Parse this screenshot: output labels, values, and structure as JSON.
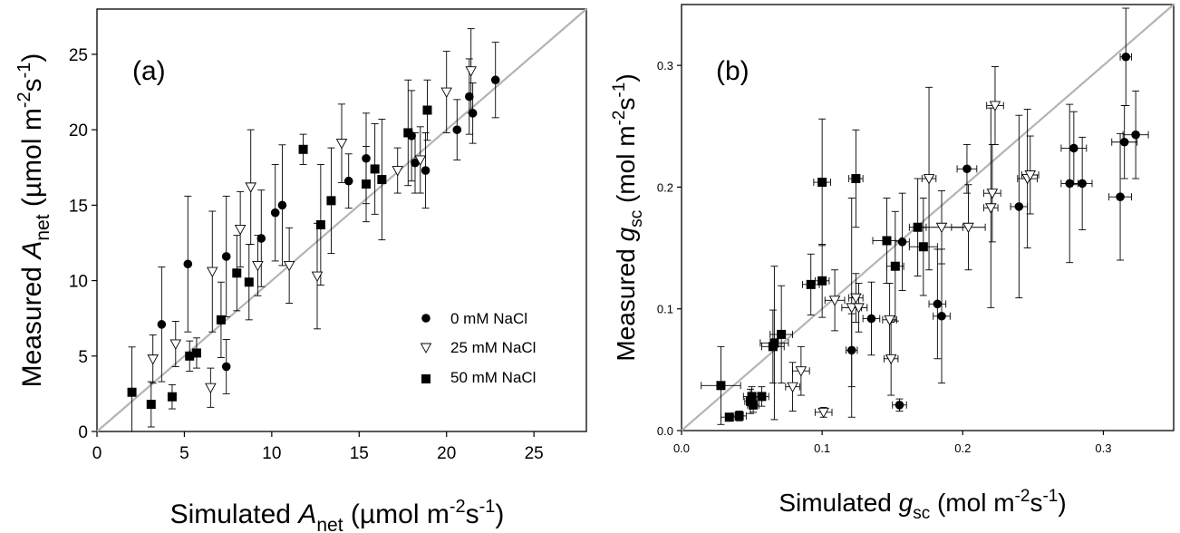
{
  "panels": [
    {
      "id": "a",
      "tag": "(a)",
      "x_axis": {
        "pre": "Simulated ",
        "var": "A",
        "sub": "net",
        "post_open": " (µmol m",
        "sup1": "-2",
        "mid": "s",
        "sup2": "-1",
        "close": ")"
      },
      "y_axis": {
        "pre": "Measured ",
        "var": "A",
        "sub": "net",
        "post_open": " (µmol m",
        "sup1": "-2",
        "mid": "s",
        "sup2": "-1",
        "close": ")"
      },
      "x_ticks": [
        "0",
        "5",
        "10",
        "15",
        "20",
        "25"
      ],
      "y_ticks": [
        "0",
        "5",
        "10",
        "15",
        "20",
        "25"
      ]
    },
    {
      "id": "b",
      "tag": "(b)",
      "x_axis": {
        "pre": "Simulated ",
        "var": "g",
        "sub": "sc",
        "post_open": " (mol m",
        "sup1": "-2",
        "mid": "s",
        "sup2": "-1",
        "close": ")"
      },
      "y_axis": {
        "pre": "Measured ",
        "var": "g",
        "sub": "sc",
        "post_open": " (mol m",
        "sup1": "-2",
        "mid": "s",
        "sup2": "-1",
        "close": ")"
      },
      "x_ticks": [
        "0.0",
        "0.1",
        "0.2",
        "0.3"
      ],
      "y_ticks": [
        "0.0",
        "0.1",
        "0.2",
        "0.3"
      ]
    }
  ],
  "legend": {
    "placement": "lower-right of panel (a)",
    "entries": [
      "0 mM NaCl",
      "25 mM NaCl",
      "50 mM NaCl"
    ]
  },
  "chart_data": [
    {
      "type": "scatter",
      "panel": "a",
      "xlim": [
        0,
        28
      ],
      "ylim": [
        0,
        28
      ],
      "reference_line": "1:1",
      "series": [
        {
          "name": "0 mM NaCl",
          "marker": "circle-filled",
          "points": [
            {
              "x": 3.7,
              "y": 7.1,
              "ey": 3.8
            },
            {
              "x": 5.2,
              "y": 11.1,
              "ey": 4.5
            },
            {
              "x": 7.4,
              "y": 11.6,
              "ey": 4.0
            },
            {
              "x": 7.4,
              "y": 4.3,
              "ey": 1.8
            },
            {
              "x": 9.4,
              "y": 12.8,
              "ey": 3.2
            },
            {
              "x": 10.2,
              "y": 14.5,
              "ey": 3.2
            },
            {
              "x": 10.6,
              "y": 15.0,
              "ey": 4.0
            },
            {
              "x": 14.4,
              "y": 16.6,
              "ey": 1.8
            },
            {
              "x": 15.4,
              "y": 18.1,
              "ey": 3.0
            },
            {
              "x": 18.0,
              "y": 19.6,
              "ey": 3.0
            },
            {
              "x": 18.2,
              "y": 17.8,
              "ey": 2.0
            },
            {
              "x": 18.8,
              "y": 17.3,
              "ey": 2.5
            },
            {
              "x": 20.6,
              "y": 20.0,
              "ey": 2.0
            },
            {
              "x": 21.3,
              "y": 22.2,
              "ey": 2.5
            },
            {
              "x": 21.5,
              "y": 21.1,
              "ey": 2.0
            },
            {
              "x": 22.8,
              "y": 23.3,
              "ey": 2.5
            }
          ]
        },
        {
          "name": "25 mM NaCl",
          "marker": "triangle-down-open",
          "points": [
            {
              "x": 3.2,
              "y": 4.8,
              "ey": 1.6
            },
            {
              "x": 4.5,
              "y": 5.8,
              "ey": 1.5
            },
            {
              "x": 6.6,
              "y": 10.6,
              "ey": 4.0
            },
            {
              "x": 6.5,
              "y": 2.9,
              "ey": 1.3
            },
            {
              "x": 8.2,
              "y": 13.4,
              "ey": 2.5
            },
            {
              "x": 8.8,
              "y": 16.2,
              "ey": 3.8
            },
            {
              "x": 9.2,
              "y": 11.0,
              "ey": 2.0
            },
            {
              "x": 11.0,
              "y": 11.0,
              "ey": 2.5
            },
            {
              "x": 12.6,
              "y": 10.3,
              "ey": 3.5
            },
            {
              "x": 14.0,
              "y": 19.1,
              "ey": 2.6
            },
            {
              "x": 17.2,
              "y": 17.3,
              "ey": 1.5
            },
            {
              "x": 18.5,
              "y": 18.0,
              "ey": 2.2
            },
            {
              "x": 20.0,
              "y": 22.5,
              "ey": 2.7
            },
            {
              "x": 21.4,
              "y": 23.9,
              "ey": 2.8
            }
          ]
        },
        {
          "name": "50 mM NaCl",
          "marker": "square-filled",
          "points": [
            {
              "x": 2.0,
              "y": 2.6,
              "ey": 3.0
            },
            {
              "x": 3.1,
              "y": 1.8,
              "ey": 1.5
            },
            {
              "x": 4.3,
              "y": 2.3,
              "ey": 0.8
            },
            {
              "x": 5.3,
              "y": 5.0,
              "ey": 1.0
            },
            {
              "x": 5.7,
              "y": 5.2,
              "ey": 1.0
            },
            {
              "x": 7.1,
              "y": 7.4,
              "ey": 2.5
            },
            {
              "x": 8.0,
              "y": 10.5,
              "ey": 2.5
            },
            {
              "x": 8.7,
              "y": 9.9,
              "ey": 2.5
            },
            {
              "x": 11.8,
              "y": 18.7,
              "ey": 1.0
            },
            {
              "x": 12.8,
              "y": 13.7,
              "ey": 4.0
            },
            {
              "x": 13.4,
              "y": 15.3,
              "ey": 3.5
            },
            {
              "x": 15.4,
              "y": 16.4,
              "ey": 2.5
            },
            {
              "x": 15.9,
              "y": 17.4,
              "ey": 3.0
            },
            {
              "x": 16.3,
              "y": 16.7,
              "ey": 4.0
            },
            {
              "x": 17.8,
              "y": 19.8,
              "ey": 3.5
            },
            {
              "x": 18.9,
              "y": 21.3,
              "ey": 2.0
            }
          ]
        }
      ]
    },
    {
      "type": "scatter",
      "panel": "b",
      "xlim": [
        0,
        0.35
      ],
      "ylim": [
        0,
        0.35
      ],
      "reference_line": "1:1",
      "series": [
        {
          "name": "0 mM NaCl",
          "marker": "circle-filled",
          "points": [
            {
              "x": 0.121,
              "y": 0.066,
              "ex": 0.004,
              "ey": 0.03
            },
            {
              "x": 0.135,
              "y": 0.092,
              "ex": 0.006,
              "ey": 0.03
            },
            {
              "x": 0.157,
              "y": 0.155,
              "ex": 0.005,
              "ey": 0.04
            },
            {
              "x": 0.155,
              "y": 0.021,
              "ex": 0.005,
              "ey": 0.005
            },
            {
              "x": 0.182,
              "y": 0.104,
              "ex": 0.006,
              "ey": 0.045
            },
            {
              "x": 0.185,
              "y": 0.094,
              "ex": 0.006,
              "ey": 0.055
            },
            {
              "x": 0.203,
              "y": 0.215,
              "ex": 0.007,
              "ey": 0.02
            },
            {
              "x": 0.24,
              "y": 0.184,
              "ex": 0.006,
              "ey": 0.075
            },
            {
              "x": 0.276,
              "y": 0.203,
              "ex": 0.006,
              "ey": 0.065
            },
            {
              "x": 0.279,
              "y": 0.232,
              "ex": 0.009,
              "ey": 0.03
            },
            {
              "x": 0.285,
              "y": 0.203,
              "ex": 0.007,
              "ey": 0.038
            },
            {
              "x": 0.312,
              "y": 0.192,
              "ex": 0.008,
              "ey": 0.052
            },
            {
              "x": 0.315,
              "y": 0.237,
              "ex": 0.009,
              "ey": 0.03
            },
            {
              "x": 0.316,
              "y": 0.307,
              "ex": 0.004,
              "ey": 0.04
            },
            {
              "x": 0.323,
              "y": 0.243,
              "ex": 0.009,
              "ey": 0.036
            }
          ]
        },
        {
          "name": "25 mM NaCl",
          "marker": "triangle-down-open",
          "points": [
            {
              "x": 0.079,
              "y": 0.036,
              "ex": 0.005,
              "ey": 0.02
            },
            {
              "x": 0.085,
              "y": 0.049,
              "ex": 0.006,
              "ey": 0.02
            },
            {
              "x": 0.101,
              "y": 0.015,
              "ex": 0.006,
              "ey": 0.004
            },
            {
              "x": 0.109,
              "y": 0.107,
              "ex": 0.007,
              "ey": 0.025
            },
            {
              "x": 0.121,
              "y": 0.101,
              "ex": 0.007,
              "ey": 0.09
            },
            {
              "x": 0.124,
              "y": 0.109,
              "ex": 0.005,
              "ey": 0.02
            },
            {
              "x": 0.126,
              "y": 0.101,
              "ex": 0.006,
              "ey": 0.02
            },
            {
              "x": 0.149,
              "y": 0.059,
              "ex": 0.005,
              "ey": 0.03
            },
            {
              "x": 0.148,
              "y": 0.091,
              "ex": 0.005,
              "ey": 0.03
            },
            {
              "x": 0.176,
              "y": 0.207,
              "ex": 0.005,
              "ey": 0.075
            },
            {
              "x": 0.185,
              "y": 0.167,
              "ex": 0.015,
              "ey": 0.03
            },
            {
              "x": 0.204,
              "y": 0.167,
              "ex": 0.012,
              "ey": 0.035
            },
            {
              "x": 0.22,
              "y": 0.183,
              "ex": 0.005,
              "ey": 0.082
            },
            {
              "x": 0.221,
              "y": 0.195,
              "ex": 0.006,
              "ey": 0.04
            },
            {
              "x": 0.223,
              "y": 0.267,
              "ex": 0.006,
              "ey": 0.032
            },
            {
              "x": 0.246,
              "y": 0.207,
              "ex": 0.007,
              "ey": 0.057
            },
            {
              "x": 0.248,
              "y": 0.21,
              "ex": 0.006,
              "ey": 0.032
            }
          ]
        },
        {
          "name": "50 mM NaCl",
          "marker": "square-filled",
          "points": [
            {
              "x": 0.028,
              "y": 0.037,
              "ex": 0.014,
              "ey": 0.032
            },
            {
              "x": 0.034,
              "y": 0.011,
              "ex": 0.006,
              "ey": 0.003
            },
            {
              "x": 0.041,
              "y": 0.012,
              "ex": 0.005,
              "ey": 0.004
            },
            {
              "x": 0.049,
              "y": 0.024,
              "ex": 0.004,
              "ey": 0.01
            },
            {
              "x": 0.05,
              "y": 0.028,
              "ex": 0.006,
              "ey": 0.008
            },
            {
              "x": 0.057,
              "y": 0.028,
              "ex": 0.005,
              "ey": 0.008
            },
            {
              "x": 0.051,
              "y": 0.021,
              "ex": 0.004,
              "ey": 0.006
            },
            {
              "x": 0.065,
              "y": 0.069,
              "ex": 0.008,
              "ey": 0.03
            },
            {
              "x": 0.066,
              "y": 0.072,
              "ex": 0.01,
              "ey": 0.063
            },
            {
              "x": 0.071,
              "y": 0.079,
              "ex": 0.008,
              "ey": 0.04
            },
            {
              "x": 0.092,
              "y": 0.12,
              "ex": 0.006,
              "ey": 0.025
            },
            {
              "x": 0.1,
              "y": 0.123,
              "ex": 0.005,
              "ey": 0.03
            },
            {
              "x": 0.1,
              "y": 0.204,
              "ex": 0.006,
              "ey": 0.052
            },
            {
              "x": 0.124,
              "y": 0.207,
              "ex": 0.005,
              "ey": 0.04
            },
            {
              "x": 0.146,
              "y": 0.156,
              "ex": 0.01,
              "ey": 0.035
            },
            {
              "x": 0.152,
              "y": 0.135,
              "ex": 0.006,
              "ey": 0.045
            },
            {
              "x": 0.168,
              "y": 0.167,
              "ex": 0.006,
              "ey": 0.04
            },
            {
              "x": 0.172,
              "y": 0.151,
              "ex": 0.01,
              "ey": 0.04
            }
          ]
        }
      ]
    }
  ]
}
